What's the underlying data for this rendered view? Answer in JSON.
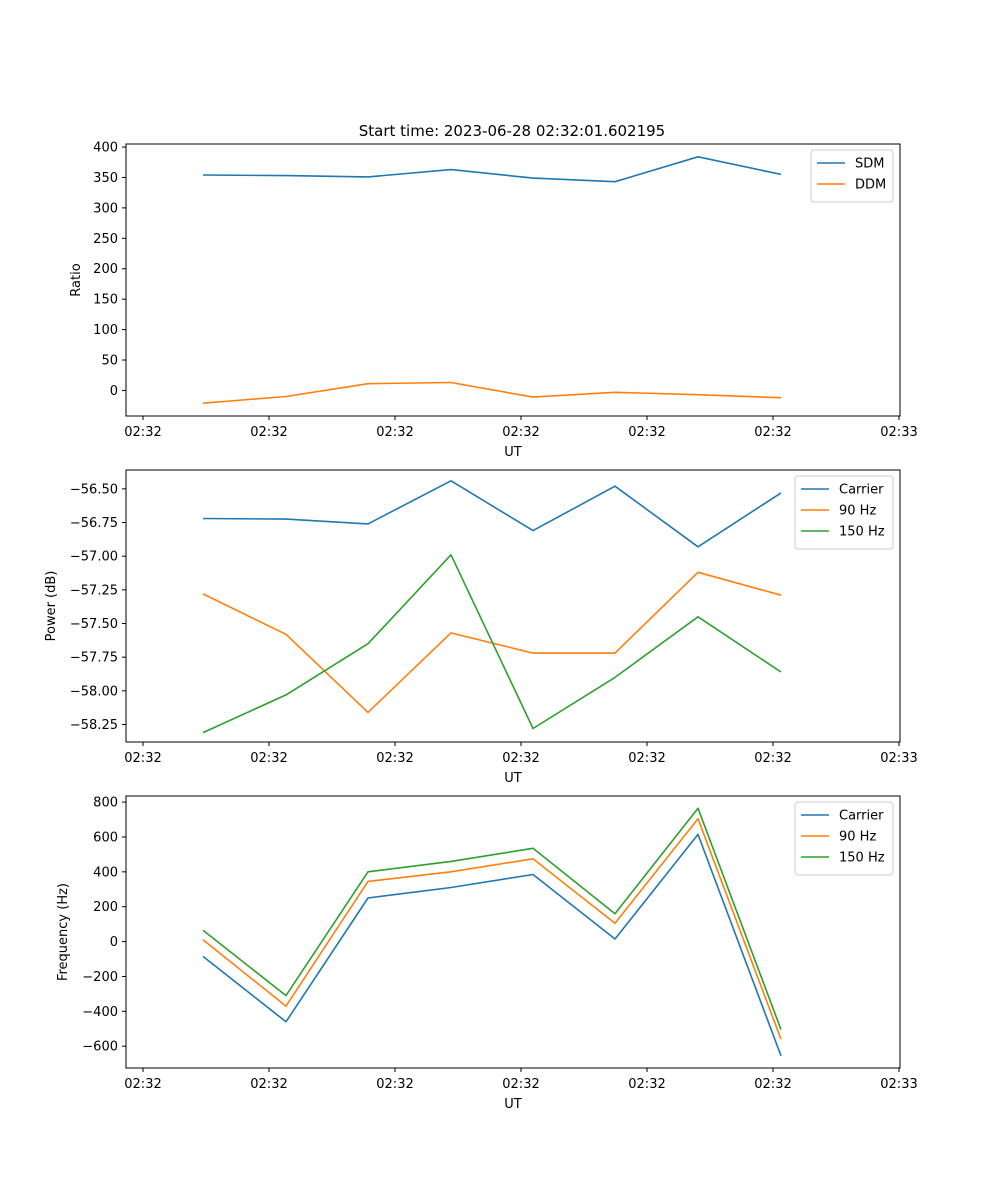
{
  "figure": {
    "title": "Start time: 2023-06-28 02:32:01.602195"
  },
  "chart_data": [
    {
      "type": "line",
      "xlabel": "UT",
      "ylabel": "Ratio",
      "x_ticks": [
        "02:32",
        "02:32",
        "02:32",
        "02:32",
        "02:32",
        "02:32",
        "02:33"
      ],
      "y_ticks": [
        "0",
        "50",
        "100",
        "150",
        "200",
        "250",
        "300",
        "350",
        "400"
      ],
      "y_tick_values": [
        0,
        50,
        100,
        150,
        200,
        250,
        300,
        350,
        400
      ],
      "ylim": [
        -42,
        405
      ],
      "legend": "top-right",
      "grid": false,
      "series": [
        {
          "name": "SDM",
          "color": "#1f77b4",
          "values": [
            354,
            353,
            351,
            363,
            349,
            343,
            384,
            355
          ]
        },
        {
          "name": "DDM",
          "color": "#ff7f0e",
          "values": [
            -21,
            -10,
            11,
            13,
            -11,
            -3,
            -7,
            -12
          ]
        }
      ]
    },
    {
      "type": "line",
      "xlabel": "UT",
      "ylabel": "Power (dB)",
      "x_ticks": [
        "02:32",
        "02:32",
        "02:32",
        "02:32",
        "02:32",
        "02:32",
        "02:33"
      ],
      "y_ticks": [
        "−58.25",
        "−58.00",
        "−57.75",
        "−57.50",
        "−57.25",
        "−57.00",
        "−56.75",
        "−56.50"
      ],
      "y_tick_values": [
        -58.25,
        -58.0,
        -57.75,
        -57.5,
        -57.25,
        -57.0,
        -56.75,
        -56.5
      ],
      "ylim": [
        -58.38,
        -56.36
      ],
      "legend": "top-right",
      "grid": false,
      "series": [
        {
          "name": "Carrier",
          "color": "#1f77b4",
          "values": [
            -56.72,
            -56.725,
            -56.76,
            -56.44,
            -56.81,
            -56.48,
            -56.93,
            -56.53
          ]
        },
        {
          "name": "90 Hz",
          "color": "#ff7f0e",
          "values": [
            -57.28,
            -57.58,
            -58.16,
            -57.57,
            -57.72,
            -57.72,
            -57.12,
            -57.29
          ]
        },
        {
          "name": "150 Hz",
          "color": "#2ca02c",
          "values": [
            -58.31,
            -58.03,
            -57.65,
            -56.99,
            -58.28,
            -57.9,
            -57.45,
            -57.86
          ]
        }
      ]
    },
    {
      "type": "line",
      "xlabel": "UT",
      "ylabel": "Frequency (Hz)",
      "x_ticks": [
        "02:32",
        "02:32",
        "02:32",
        "02:32",
        "02:32",
        "02:32",
        "02:33"
      ],
      "y_ticks": [
        "−600",
        "−400",
        "−200",
        "0",
        "200",
        "400",
        "600",
        "800"
      ],
      "y_tick_values": [
        -600,
        -400,
        -200,
        0,
        200,
        400,
        600,
        800
      ],
      "ylim": [
        -725,
        835
      ],
      "legend": "top-right",
      "grid": false,
      "series": [
        {
          "name": "Carrier",
          "color": "#1f77b4",
          "values": [
            -85,
            -460,
            250,
            310,
            385,
            15,
            615,
            -655
          ]
        },
        {
          "name": "90 Hz",
          "color": "#ff7f0e",
          "values": [
            10,
            -370,
            345,
            400,
            475,
            105,
            705,
            -560
          ]
        },
        {
          "name": "150 Hz",
          "color": "#2ca02c",
          "values": [
            65,
            -310,
            400,
            460,
            535,
            160,
            765,
            -505
          ]
        }
      ]
    }
  ]
}
